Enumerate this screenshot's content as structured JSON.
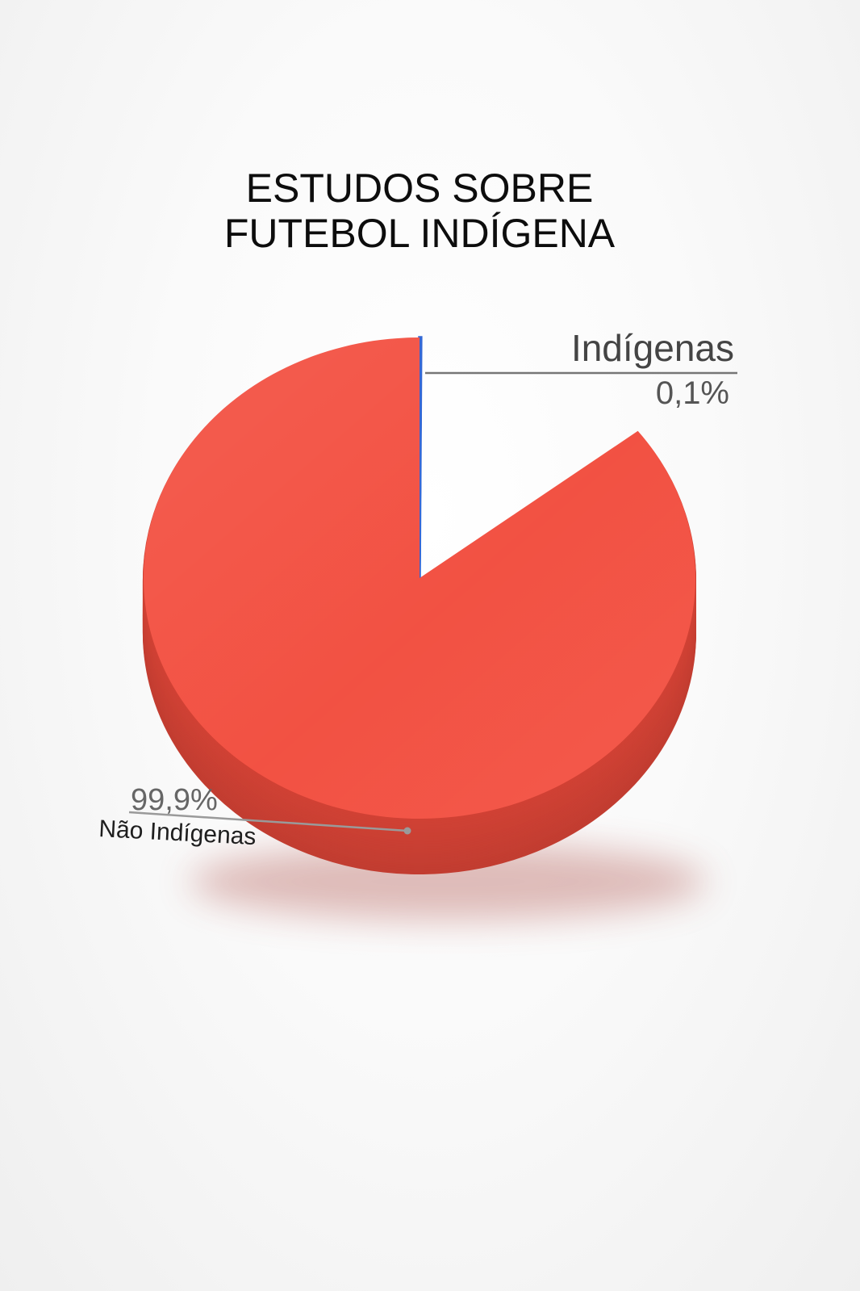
{
  "chart_data": {
    "type": "pie",
    "style": "3d",
    "title": [
      "ESTUDOS SOBRE",
      "FUTEBOL INDÍGENA"
    ],
    "slices": [
      {
        "label": "Indígenas",
        "value": 0.1,
        "value_label": "0,1%",
        "color": "#3568d4"
      },
      {
        "label": "Não Indígenas",
        "value": 99.9,
        "value_label": "99,9%",
        "color": "#f24c3d"
      }
    ]
  }
}
